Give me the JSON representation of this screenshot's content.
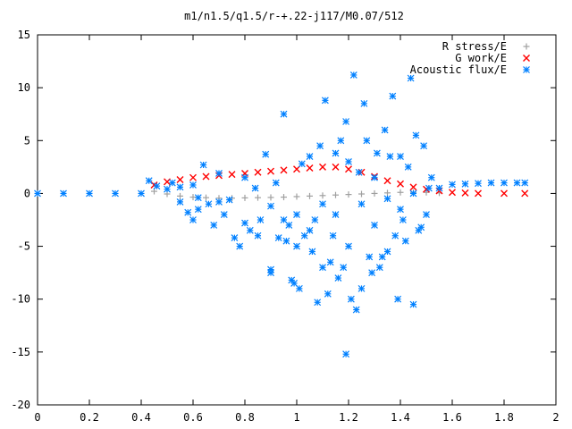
{
  "chart_data": {
    "type": "scatter",
    "title": "m1/n1.5/q1.5/r-+.22-j117/M0.07/512",
    "xlabel": "",
    "ylabel": "",
    "xlim": [
      0,
      2
    ],
    "ylim": [
      -20,
      15
    ],
    "xticks": [
      "0",
      "0.2",
      "0.4",
      "0.6",
      "0.8",
      "1",
      "1.2",
      "1.4",
      "1.6",
      "1.8",
      "2"
    ],
    "yticks": [
      "15",
      "10",
      "5",
      "0",
      "-5",
      "-10",
      "-15",
      "-20"
    ],
    "grid": false,
    "legend_position": "top-right",
    "series": [
      {
        "name": "R stress/E",
        "marker": "plus",
        "color": "#a0a0a0",
        "points": [
          [
            0.45,
            0.2
          ],
          [
            0.5,
            -0.05
          ],
          [
            0.55,
            -0.25
          ],
          [
            0.6,
            -0.35
          ],
          [
            0.65,
            -0.4
          ],
          [
            0.7,
            -0.45
          ],
          [
            0.75,
            -0.45
          ],
          [
            0.8,
            -0.42
          ],
          [
            0.85,
            -0.4
          ],
          [
            0.9,
            -0.38
          ],
          [
            0.95,
            -0.35
          ],
          [
            1.0,
            -0.3
          ],
          [
            1.05,
            -0.25
          ],
          [
            1.1,
            -0.2
          ],
          [
            1.15,
            -0.15
          ],
          [
            1.2,
            -0.1
          ],
          [
            1.25,
            -0.05
          ],
          [
            1.3,
            0.0
          ],
          [
            1.35,
            0.05
          ],
          [
            1.4,
            0.1
          ],
          [
            1.45,
            0.1
          ],
          [
            1.5,
            0.1
          ],
          [
            1.55,
            0.05
          ]
        ]
      },
      {
        "name": "G work/E",
        "marker": "cross",
        "color": "#ff0000",
        "points": [
          [
            0.45,
            0.8
          ],
          [
            0.5,
            1.1
          ],
          [
            0.55,
            1.3
          ],
          [
            0.6,
            1.5
          ],
          [
            0.65,
            1.6
          ],
          [
            0.7,
            1.7
          ],
          [
            0.75,
            1.8
          ],
          [
            0.8,
            1.9
          ],
          [
            0.85,
            2.0
          ],
          [
            0.9,
            2.1
          ],
          [
            0.95,
            2.2
          ],
          [
            1.0,
            2.3
          ],
          [
            1.05,
            2.4
          ],
          [
            1.1,
            2.5
          ],
          [
            1.15,
            2.5
          ],
          [
            1.2,
            2.3
          ],
          [
            1.25,
            2.0
          ],
          [
            1.3,
            1.6
          ],
          [
            1.35,
            1.2
          ],
          [
            1.4,
            0.9
          ],
          [
            1.45,
            0.6
          ],
          [
            1.5,
            0.4
          ],
          [
            1.55,
            0.25
          ],
          [
            1.6,
            0.1
          ],
          [
            1.65,
            0.05
          ],
          [
            1.7,
            0.0
          ],
          [
            1.8,
            0.0
          ],
          [
            1.88,
            0.0
          ]
        ]
      },
      {
        "name": "Acoustic flux/E",
        "marker": "star",
        "color": "#0080ff",
        "points": [
          [
            0.0,
            0.0
          ],
          [
            0.1,
            0.0
          ],
          [
            0.2,
            0.0
          ],
          [
            0.3,
            0.0
          ],
          [
            0.4,
            0.0
          ],
          [
            0.43,
            1.2
          ],
          [
            0.46,
            0.7
          ],
          [
            0.5,
            0.4
          ],
          [
            0.55,
            0.6
          ],
          [
            0.6,
            0.8
          ],
          [
            1.55,
            0.5
          ],
          [
            1.6,
            0.85
          ],
          [
            1.65,
            0.9
          ],
          [
            1.7,
            0.95
          ],
          [
            1.75,
            1.0
          ],
          [
            1.8,
            1.0
          ],
          [
            1.85,
            1.0
          ],
          [
            1.88,
            1.0
          ],
          [
            0.52,
            1.0
          ],
          [
            0.55,
            -0.8
          ],
          [
            0.58,
            -1.8
          ],
          [
            0.6,
            -2.5
          ],
          [
            0.62,
            -0.4
          ],
          [
            0.64,
            2.7
          ],
          [
            0.66,
            -1.0
          ],
          [
            0.68,
            -3.0
          ],
          [
            0.7,
            1.9
          ],
          [
            0.72,
            -2.0
          ],
          [
            0.74,
            -0.6
          ],
          [
            0.76,
            -4.2
          ],
          [
            0.78,
            -5.0
          ],
          [
            0.8,
            1.5
          ],
          [
            0.82,
            -3.5
          ],
          [
            0.84,
            0.5
          ],
          [
            0.86,
            -2.5
          ],
          [
            0.88,
            3.7
          ],
          [
            0.9,
            -7.2
          ],
          [
            0.9,
            -7.5
          ],
          [
            0.92,
            1.0
          ],
          [
            0.93,
            -4.2
          ],
          [
            0.95,
            7.5
          ],
          [
            0.96,
            -4.5
          ],
          [
            0.97,
            -3.0
          ],
          [
            0.98,
            -8.2
          ],
          [
            0.99,
            -8.5
          ],
          [
            1.0,
            -2.0
          ],
          [
            1.01,
            -9.0
          ],
          [
            1.02,
            2.8
          ],
          [
            1.03,
            -4.0
          ],
          [
            1.05,
            3.5
          ],
          [
            1.06,
            -5.5
          ],
          [
            1.07,
            -2.5
          ],
          [
            1.08,
            -10.3
          ],
          [
            1.09,
            4.5
          ],
          [
            1.1,
            -1.0
          ],
          [
            1.11,
            8.8
          ],
          [
            1.12,
            -9.5
          ],
          [
            1.13,
            -6.5
          ],
          [
            1.14,
            -4.0
          ],
          [
            1.15,
            3.8
          ],
          [
            1.16,
            -8.0
          ],
          [
            1.17,
            5.0
          ],
          [
            1.18,
            -7.0
          ],
          [
            1.19,
            6.8
          ],
          [
            1.19,
            -15.2
          ],
          [
            1.2,
            3.0
          ],
          [
            1.21,
            -10.0
          ],
          [
            1.22,
            11.2
          ],
          [
            1.23,
            -11.0
          ],
          [
            1.24,
            2.0
          ],
          [
            1.25,
            -9.0
          ],
          [
            1.26,
            8.5
          ],
          [
            1.27,
            5.0
          ],
          [
            1.28,
            -6.0
          ],
          [
            1.29,
            -7.5
          ],
          [
            1.3,
            1.5
          ],
          [
            1.31,
            3.8
          ],
          [
            1.32,
            -7.0
          ],
          [
            1.33,
            -6.0
          ],
          [
            1.34,
            6.0
          ],
          [
            1.35,
            -5.5
          ],
          [
            1.36,
            3.5
          ],
          [
            1.37,
            9.2
          ],
          [
            1.38,
            -4.0
          ],
          [
            1.39,
            -10.0
          ],
          [
            1.4,
            3.5
          ],
          [
            1.41,
            -2.5
          ],
          [
            1.42,
            -4.5
          ],
          [
            1.43,
            2.5
          ],
          [
            1.44,
            10.9
          ],
          [
            1.45,
            -10.5
          ],
          [
            1.46,
            5.5
          ],
          [
            1.47,
            -3.5
          ],
          [
            1.48,
            -3.2
          ],
          [
            1.49,
            4.5
          ],
          [
            1.5,
            -2.0
          ],
          [
            1.51,
            0.5
          ],
          [
            1.52,
            1.5
          ],
          [
            0.62,
            -1.5
          ],
          [
            0.7,
            -0.8
          ],
          [
            0.8,
            -2.8
          ],
          [
            0.85,
            -4.0
          ],
          [
            0.9,
            -1.2
          ],
          [
            0.95,
            -2.5
          ],
          [
            1.0,
            -5.0
          ],
          [
            1.05,
            -3.5
          ],
          [
            1.1,
            -7.0
          ],
          [
            1.15,
            -2.0
          ],
          [
            1.2,
            -5.0
          ],
          [
            1.25,
            -1.0
          ],
          [
            1.3,
            -3.0
          ],
          [
            1.35,
            -0.5
          ],
          [
            1.4,
            -1.5
          ],
          [
            1.45,
            0.0
          ]
        ]
      }
    ]
  }
}
